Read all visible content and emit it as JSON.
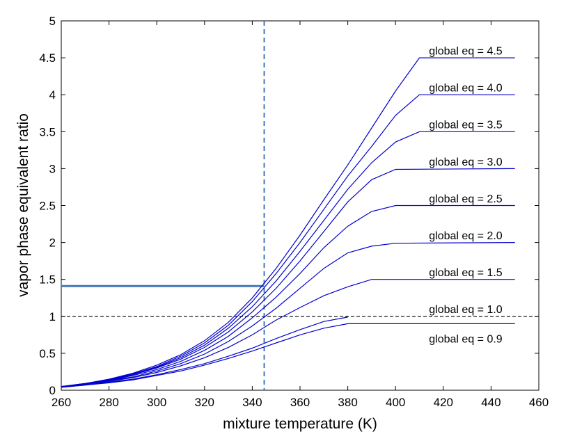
{
  "chart_data": {
    "type": "line",
    "xlabel": "mixture temperature (K)",
    "ylabel": "vapor phase equivalent ratio",
    "xlim": [
      260,
      460
    ],
    "ylim": [
      0,
      5
    ],
    "xticks": [
      260,
      280,
      300,
      320,
      340,
      360,
      380,
      400,
      420,
      440,
      460
    ],
    "yticks": [
      0,
      0.5,
      1,
      1.5,
      2,
      2.5,
      3,
      3.5,
      4,
      4.5,
      5
    ],
    "xtick_labels": [
      "260",
      "280",
      "300",
      "320",
      "340",
      "360",
      "380",
      "400",
      "420",
      "440",
      "460"
    ],
    "ytick_labels": [
      "0",
      "0.5",
      "1",
      "1.5",
      "2",
      "2.5",
      "3",
      "3.5",
      "4",
      "4.5",
      "5"
    ],
    "grid": false,
    "colors": {
      "series": "#0000cc",
      "marker_line": "#4477bb",
      "reference_line": "#000000"
    },
    "series": [
      {
        "name": "global eq = 4.5",
        "label_y": 4.6,
        "x": [
          260,
          270,
          280,
          290,
          300,
          310,
          320,
          330,
          340,
          350,
          360,
          370,
          380,
          390,
          400,
          410,
          450
        ],
        "y": [
          0.05,
          0.09,
          0.15,
          0.23,
          0.34,
          0.48,
          0.67,
          0.92,
          1.25,
          1.65,
          2.1,
          2.58,
          3.05,
          3.55,
          4.05,
          4.5,
          4.5
        ]
      },
      {
        "name": "global eq = 4.0",
        "label_y": 4.1,
        "x": [
          260,
          270,
          280,
          290,
          300,
          310,
          320,
          330,
          340,
          350,
          360,
          370,
          380,
          390,
          400,
          410,
          450
        ],
        "y": [
          0.05,
          0.09,
          0.14,
          0.22,
          0.32,
          0.46,
          0.64,
          0.88,
          1.2,
          1.58,
          2.0,
          2.45,
          2.9,
          3.3,
          3.72,
          4.0,
          4.0
        ]
      },
      {
        "name": "global eq = 3.5",
        "label_y": 3.6,
        "x": [
          260,
          270,
          280,
          290,
          300,
          310,
          320,
          330,
          340,
          350,
          360,
          370,
          380,
          390,
          400,
          410,
          450
        ],
        "y": [
          0.05,
          0.09,
          0.14,
          0.21,
          0.31,
          0.44,
          0.61,
          0.84,
          1.13,
          1.48,
          1.88,
          2.3,
          2.72,
          3.08,
          3.36,
          3.5,
          3.5
        ]
      },
      {
        "name": "global eq = 3.0",
        "label_y": 3.1,
        "x": [
          260,
          270,
          280,
          290,
          300,
          310,
          320,
          330,
          340,
          350,
          360,
          370,
          380,
          390,
          400,
          450
        ],
        "y": [
          0.05,
          0.09,
          0.14,
          0.21,
          0.3,
          0.42,
          0.58,
          0.79,
          1.06,
          1.38,
          1.75,
          2.15,
          2.55,
          2.85,
          2.99,
          3.0
        ]
      },
      {
        "name": "global eq = 2.5",
        "label_y": 2.6,
        "x": [
          260,
          270,
          280,
          290,
          300,
          310,
          320,
          330,
          340,
          350,
          360,
          370,
          380,
          390,
          400,
          450
        ],
        "y": [
          0.05,
          0.08,
          0.13,
          0.2,
          0.28,
          0.39,
          0.54,
          0.73,
          0.98,
          1.26,
          1.58,
          1.93,
          2.22,
          2.42,
          2.5,
          2.5
        ]
      },
      {
        "name": "global eq = 2.0",
        "label_y": 2.1,
        "x": [
          260,
          270,
          280,
          290,
          300,
          310,
          320,
          330,
          340,
          350,
          360,
          370,
          380,
          390,
          400,
          450
        ],
        "y": [
          0.05,
          0.08,
          0.13,
          0.18,
          0.26,
          0.36,
          0.49,
          0.66,
          0.87,
          1.11,
          1.38,
          1.65,
          1.86,
          1.95,
          1.99,
          2.0
        ]
      },
      {
        "name": "global eq = 1.5",
        "label_y": 1.6,
        "x": [
          260,
          270,
          280,
          290,
          300,
          310,
          320,
          330,
          340,
          350,
          360,
          370,
          380,
          390,
          450
        ],
        "y": [
          0.05,
          0.08,
          0.12,
          0.17,
          0.24,
          0.33,
          0.44,
          0.58,
          0.75,
          0.95,
          1.12,
          1.28,
          1.4,
          1.5,
          1.5
        ]
      },
      {
        "name": "global eq = 1.0",
        "label_y": 1.1,
        "x": [
          260,
          270,
          280,
          290,
          300,
          310,
          320,
          330,
          340,
          350,
          360,
          370,
          380
        ],
        "y": [
          0.04,
          0.07,
          0.11,
          0.15,
          0.21,
          0.28,
          0.36,
          0.46,
          0.57,
          0.7,
          0.82,
          0.93,
          0.99
        ]
      },
      {
        "name": "global eq = 0.9",
        "label_y": 0.7,
        "x": [
          260,
          270,
          280,
          290,
          300,
          310,
          320,
          330,
          340,
          350,
          360,
          370,
          380,
          450
        ],
        "y": [
          0.04,
          0.07,
          0.1,
          0.14,
          0.2,
          0.26,
          0.34,
          0.43,
          0.53,
          0.64,
          0.75,
          0.84,
          0.9,
          0.9
        ]
      }
    ],
    "reference_lines": [
      {
        "orientation": "horizontal",
        "y": 1.0,
        "style": "dashed",
        "color": "#000000"
      },
      {
        "orientation": "vertical",
        "x": 345,
        "style": "dashed",
        "color": "#4477bb"
      },
      {
        "orientation": "horizontal",
        "y": 1.41,
        "x_from": 260,
        "x_to": 345,
        "style": "solid",
        "color": "#4477bb"
      }
    ]
  }
}
